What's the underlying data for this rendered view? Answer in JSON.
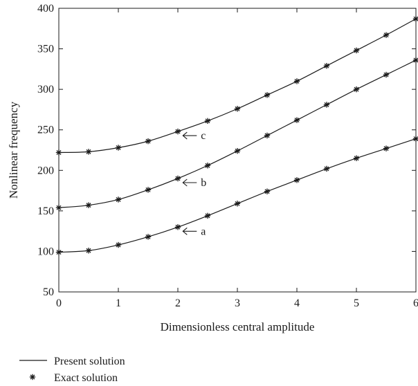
{
  "chart_data": {
    "type": "line",
    "xlabel": "Dimensionless central amplitude",
    "ylabel": "Nonlinear frequency",
    "xlim": [
      0,
      6
    ],
    "ylim": [
      50,
      400
    ],
    "xticks": [
      0,
      1,
      2,
      3,
      4,
      5,
      6
    ],
    "yticks": [
      50,
      100,
      150,
      200,
      250,
      300,
      350,
      400
    ],
    "grid": false,
    "legend_position": "bottom-left, below plot",
    "legend": {
      "line_label": "Present solution",
      "marker_label": "Exact solution"
    },
    "series": [
      {
        "name": "a",
        "x": [
          0,
          0.5,
          1,
          1.5,
          2,
          2.5,
          3,
          3.5,
          4,
          4.5,
          5,
          5.5,
          6
        ],
        "present": [
          99,
          101,
          108,
          118,
          130,
          144,
          159,
          174,
          188,
          202,
          215,
          227,
          239
        ],
        "exact": [
          99,
          101,
          108,
          118,
          130,
          144,
          159,
          174,
          188,
          202,
          215,
          227,
          239
        ]
      },
      {
        "name": "b",
        "x": [
          0,
          0.5,
          1,
          1.5,
          2,
          2.5,
          3,
          3.5,
          4,
          4.5,
          5,
          5.5,
          6
        ],
        "present": [
          154,
          157,
          164,
          176,
          190,
          206,
          224,
          243,
          262,
          281,
          300,
          318,
          336
        ],
        "exact": [
          154,
          157,
          164,
          176,
          190,
          206,
          224,
          243,
          262,
          281,
          300,
          318,
          336
        ]
      },
      {
        "name": "c",
        "x": [
          0,
          0.5,
          1,
          1.5,
          2,
          2.5,
          3,
          3.5,
          4,
          4.5,
          5,
          5.5,
          6
        ],
        "present": [
          222,
          223,
          228,
          236,
          248,
          261,
          276,
          293,
          310,
          329,
          348,
          367,
          387
        ],
        "exact": [
          222,
          223,
          228,
          236,
          248,
          261,
          276,
          293,
          310,
          329,
          348,
          367,
          387
        ]
      }
    ],
    "annotations": [
      {
        "label": "a",
        "x": 2.05,
        "y": 130
      },
      {
        "label": "b",
        "x": 2.05,
        "y": 190
      },
      {
        "label": "c",
        "x": 2.05,
        "y": 248
      }
    ],
    "colors": {
      "line": "#1a1a1a",
      "marker": "#1a1a1a"
    }
  }
}
